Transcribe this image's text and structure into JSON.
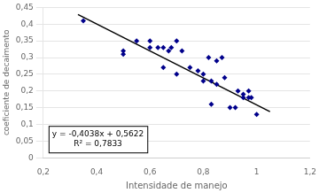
{
  "chart_data": {
    "type": "scatter",
    "xlabel": "Intensidade de manejo",
    "ylabel": "coeficiente de decaimento",
    "xlim": [
      0.2,
      1.2
    ],
    "ylim": [
      0,
      0.45
    ],
    "xticks": [
      {
        "value": 0.2,
        "label": "0,2"
      },
      {
        "value": 0.4,
        "label": "0,4"
      },
      {
        "value": 0.6,
        "label": "0,6"
      },
      {
        "value": 0.8,
        "label": "0,8"
      },
      1,
      {
        "value": 1.2,
        "label": "1,2"
      }
    ],
    "yticks": [
      0,
      {
        "value": 0.05,
        "label": "0,05"
      },
      {
        "value": 0.1,
        "label": "0,1"
      },
      {
        "value": 0.15,
        "label": "0,15"
      },
      {
        "value": 0.2,
        "label": "0,2"
      },
      {
        "value": 0.25,
        "label": "0,25"
      },
      {
        "value": 0.3,
        "label": "0,3"
      },
      {
        "value": 0.35,
        "label": "0,35"
      },
      {
        "value": 0.4,
        "label": "0,4"
      },
      {
        "value": 0.45,
        "label": "0,45"
      }
    ],
    "grid": "y",
    "series": [
      {
        "type": "scatter",
        "marker": "diamond",
        "color": "#00008B",
        "x": [
          0.35,
          0.5,
          0.5,
          0.55,
          0.6,
          0.6,
          0.63,
          0.65,
          0.65,
          0.67,
          0.68,
          0.7,
          0.7,
          0.72,
          0.75,
          0.78,
          0.8,
          0.8,
          0.82,
          0.83,
          0.83,
          0.85,
          0.85,
          0.87,
          0.88,
          0.9,
          0.92,
          0.93,
          0.95,
          0.95,
          0.97,
          0.97,
          0.98,
          1.0
        ],
        "values": [
          0.41,
          0.31,
          0.32,
          0.35,
          0.33,
          0.35,
          0.33,
          0.33,
          0.27,
          0.32,
          0.33,
          0.35,
          0.25,
          0.32,
          0.27,
          0.26,
          0.25,
          0.23,
          0.3,
          0.23,
          0.16,
          0.29,
          0.22,
          0.3,
          0.24,
          0.15,
          0.15,
          0.2,
          0.19,
          0.18,
          0.2,
          0.18,
          0.18,
          0.13
        ]
      },
      {
        "type": "line",
        "line_style": "solid",
        "color": "#000000",
        "x": [
          0.33,
          1.05
        ],
        "values": [
          0.428946,
          0.13821
        ]
      }
    ],
    "annotations": [
      "y = -0,4038x + 0,5622",
      "R² = 0,7833"
    ]
  }
}
